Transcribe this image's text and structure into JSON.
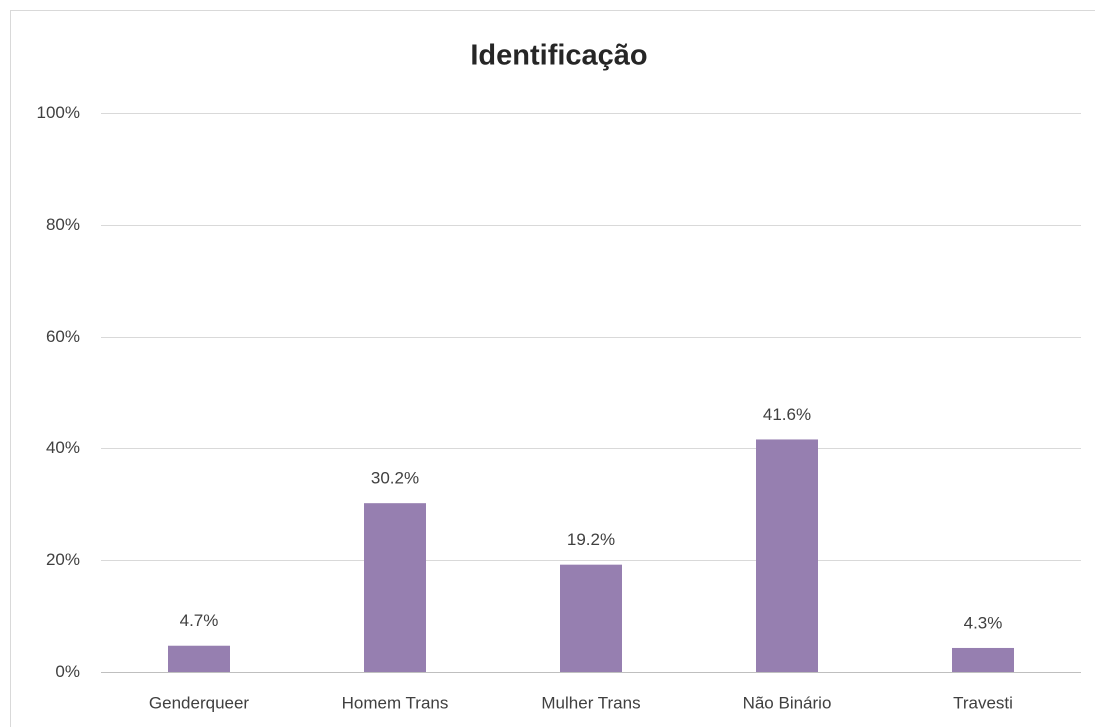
{
  "chart_data": {
    "type": "bar",
    "title": "Identificação",
    "categories": [
      "Genderqueer",
      "Homem Trans",
      "Mulher Trans",
      "Não Binário",
      "Travesti"
    ],
    "values": [
      4.7,
      30.2,
      19.2,
      41.6,
      4.3
    ],
    "value_labels": [
      "4.7%",
      "30.2%",
      "19.2%",
      "41.6%",
      "4.3%"
    ],
    "color": "#967fb0",
    "ylim": [
      0,
      100
    ],
    "yticks": [
      {
        "value": 0,
        "label": "0%"
      },
      {
        "value": 20,
        "label": "20%"
      },
      {
        "value": 40,
        "label": "40%"
      },
      {
        "value": 60,
        "label": "60%"
      },
      {
        "value": 80,
        "label": "80%"
      },
      {
        "value": 100,
        "label": "100%"
      }
    ],
    "grid": true
  }
}
